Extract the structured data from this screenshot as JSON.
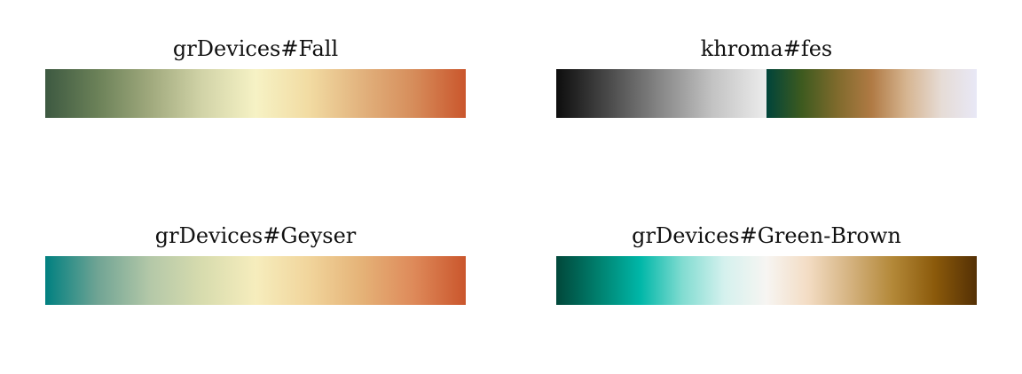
{
  "palettes": [
    {
      "title": "grDevices#Fall",
      "colors": [
        "#3d5941",
        "#6b8158",
        "#a0a97d",
        "#d2d4a8",
        "#f6f2c5",
        "#f2dca3",
        "#e2b37e",
        "#d68d5b",
        "#ca562c"
      ]
    },
    {
      "title": "khroma#fes",
      "colors": [
        "#0d0d0d",
        "#4a4a4a",
        "#888888",
        "#c4c4c4",
        "#ececec",
        "#00443a",
        "#3d5a1f",
        "#7e6a2c",
        "#b07a44",
        "#d6b591",
        "#e6dcd6",
        "#e8e8f6"
      ],
      "split_after": 5
    },
    {
      "title": "grDevices#Geyser",
      "colors": [
        "#008080",
        "#70a494",
        "#b4c8a8",
        "#d8dcae",
        "#f6edbd",
        "#f1d59c",
        "#e5b378",
        "#de8a5a",
        "#ca562c"
      ]
    },
    {
      "title": "grDevices#Green-Brown",
      "colors": [
        "#01473a",
        "#00806e",
        "#00b7a8",
        "#81dcd1",
        "#d5f1ee",
        "#f7f5f2",
        "#f3dcc3",
        "#d4b27f",
        "#b38838",
        "#8b5a0b",
        "#543005"
      ]
    }
  ]
}
